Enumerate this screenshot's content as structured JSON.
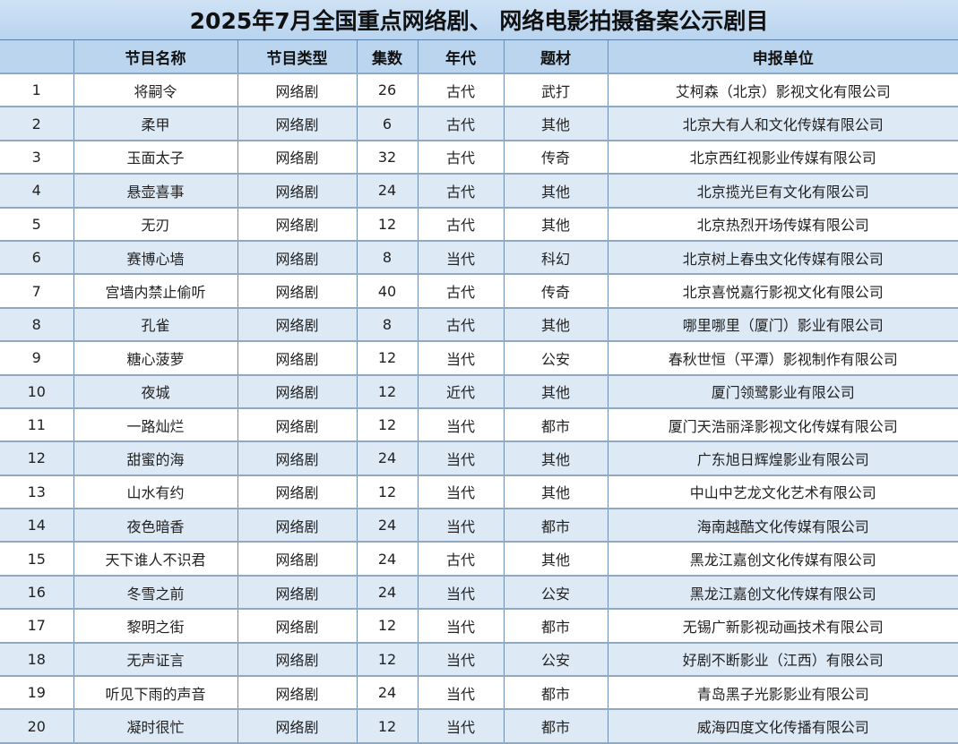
{
  "title": "2025年7月全国重点网络剧、 网络电影拍摄备案公示剧目",
  "columns": [
    "",
    "节目名称",
    "节目类型",
    "集数",
    "年代",
    "题材",
    "申报单位"
  ],
  "colors": {
    "header_bg": "#bcd5ee",
    "alt_row_bg": "#dde9f5"
  },
  "rows": [
    [
      "1",
      "将嗣令",
      "网络剧",
      "26",
      "古代",
      "武打",
      "艾柯森（北京）影视文化有限公司"
    ],
    [
      "2",
      "柔甲",
      "网络剧",
      "6",
      "古代",
      "其他",
      "北京大有人和文化传媒有限公司"
    ],
    [
      "3",
      "玉面太子",
      "网络剧",
      "32",
      "古代",
      "传奇",
      "北京西红视影业传媒有限公司"
    ],
    [
      "4",
      "悬壶喜事",
      "网络剧",
      "24",
      "古代",
      "其他",
      "北京揽光巨有文化有限公司"
    ],
    [
      "5",
      "无刃",
      "网络剧",
      "12",
      "古代",
      "其他",
      "北京热烈开场传媒有限公司"
    ],
    [
      "6",
      "赛博心墙",
      "网络剧",
      "8",
      "当代",
      "科幻",
      "北京树上春虫文化传媒有限公司"
    ],
    [
      "7",
      "宫墙内禁止偷听",
      "网络剧",
      "40",
      "古代",
      "传奇",
      "北京喜悦嘉行影视文化有限公司"
    ],
    [
      "8",
      "孔雀",
      "网络剧",
      "8",
      "古代",
      "其他",
      "哪里哪里（厦门）影业有限公司"
    ],
    [
      "9",
      "糖心菠萝",
      "网络剧",
      "12",
      "当代",
      "公安",
      "春秋世恒（平潭）影视制作有限公司"
    ],
    [
      "10",
      "夜城",
      "网络剧",
      "12",
      "近代",
      "其他",
      "厦门领鹭影业有限公司"
    ],
    [
      "11",
      "一路灿烂",
      "网络剧",
      "12",
      "当代",
      "都市",
      "厦门天浩丽泽影视文化传媒有限公司"
    ],
    [
      "12",
      "甜蜜的海",
      "网络剧",
      "24",
      "当代",
      "其他",
      "广东旭日辉煌影业有限公司"
    ],
    [
      "13",
      "山水有约",
      "网络剧",
      "12",
      "当代",
      "其他",
      "中山中艺龙文化艺术有限公司"
    ],
    [
      "14",
      "夜色暗香",
      "网络剧",
      "24",
      "当代",
      "都市",
      "海南越酷文化传媒有限公司"
    ],
    [
      "15",
      "天下谁人不识君",
      "网络剧",
      "24",
      "古代",
      "其他",
      "黑龙江嘉创文化传媒有限公司"
    ],
    [
      "16",
      "冬雪之前",
      "网络剧",
      "24",
      "当代",
      "公安",
      "黑龙江嘉创文化传媒有限公司"
    ],
    [
      "17",
      "黎明之街",
      "网络剧",
      "12",
      "当代",
      "都市",
      "无锡广新影视动画技术有限公司"
    ],
    [
      "18",
      "无声证言",
      "网络剧",
      "12",
      "当代",
      "公安",
      "好剧不断影业（江西）有限公司"
    ],
    [
      "19",
      "听见下雨的声音",
      "网络剧",
      "24",
      "当代",
      "都市",
      "青岛黑子光影影业有限公司"
    ],
    [
      "20",
      "凝时很忙",
      "网络剧",
      "12",
      "当代",
      "都市",
      "威海四度文化传播有限公司"
    ]
  ]
}
